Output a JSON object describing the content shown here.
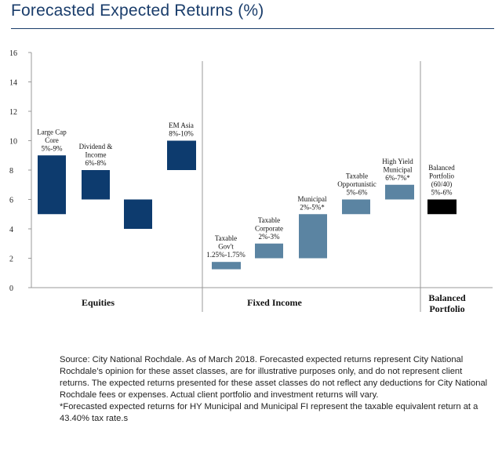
{
  "title": "Forecasted Expected Returns (%)",
  "chart_data": {
    "type": "bar",
    "subtype": "floating-range",
    "title": "Forecasted Expected Returns (%)",
    "ylim": [
      0,
      16
    ],
    "yticks": [
      0,
      2,
      4,
      6,
      8,
      10,
      12,
      14,
      16
    ],
    "grid": false,
    "groups": [
      "Equities",
      "Fixed Income",
      "Balanced Portfolio"
    ],
    "bars": [
      {
        "group": "Equities",
        "label": [
          "Large Cap",
          "Core",
          "5%-9%"
        ],
        "low": 5,
        "high": 9,
        "color": "#0d3b6e"
      },
      {
        "group": "Equities",
        "label": [
          "Dividend &",
          "Income",
          "6%-8%"
        ],
        "low": 6,
        "high": 8,
        "color": "#0d3b6e"
      },
      {
        "group": "Equities",
        "label": [],
        "low": 4,
        "high": 6,
        "color": "#0d3b6e"
      },
      {
        "group": "Equities",
        "label": [
          "EM Asia",
          "8%-10%"
        ],
        "low": 8,
        "high": 10,
        "color": "#0d3b6e"
      },
      {
        "group": "Fixed Income",
        "label": [
          "Taxable",
          "Gov't",
          "1.25%-1.75%"
        ],
        "low": 1.25,
        "high": 1.75,
        "color": "#5b84a2"
      },
      {
        "group": "Fixed Income",
        "label": [
          "Taxable",
          "Corporate",
          "2%-3%"
        ],
        "low": 2,
        "high": 3,
        "color": "#5b84a2"
      },
      {
        "group": "Fixed Income",
        "label": [
          "Municipal",
          "2%-5%*"
        ],
        "low": 2,
        "high": 5,
        "color": "#5b84a2"
      },
      {
        "group": "Fixed Income",
        "label": [
          "Taxable",
          "Opportunistic",
          "5%-6%"
        ],
        "low": 5,
        "high": 6,
        "color": "#5b84a2"
      },
      {
        "group": "Fixed Income",
        "label": [
          "High Yield",
          "Municipal",
          "6%-7%*"
        ],
        "low": 6,
        "high": 7,
        "color": "#5b84a2"
      },
      {
        "group": "Balanced Portfolio",
        "label": [
          "Balanced",
          "Portfolio",
          "(60/40)",
          "5%-6%"
        ],
        "low": 5,
        "high": 6,
        "color": "#000000"
      }
    ],
    "group_labels": [
      [
        "Equities"
      ],
      [
        "Fixed Income"
      ],
      [
        "Balanced",
        "Portfolio"
      ]
    ]
  },
  "footnote": {
    "source": "Source: City National Rochdale. As of March 2018. Forecasted expected returns represent City National Rochdale’s opinion for these asset classes, are for illustrative purposes only, and do not represent client returns. The expected returns presented for these asset classes do not reflect any deductions for City National Rochdale fees or expenses. Actual client portfolio and investment returns will vary.",
    "note": "*Forecasted expected returns for HY Municipal and Municipal FI represent the taxable equivalent return at a 43.40% tax rate.s"
  }
}
